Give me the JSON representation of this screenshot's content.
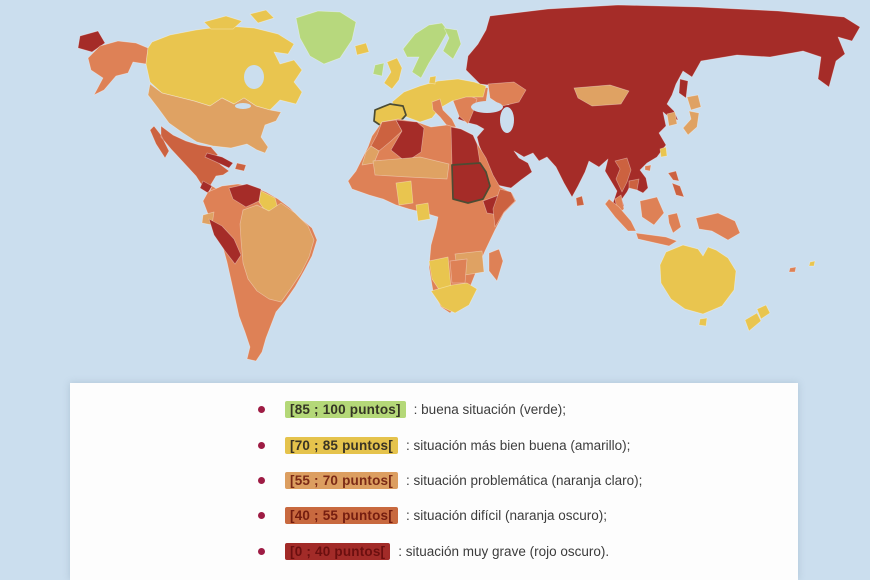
{
  "page": {
    "background": "#cbdeee"
  },
  "map": {
    "ocean": "#cbdeee",
    "palette": {
      "green": "#b7d87d",
      "yellow": "#e9c54f",
      "light_orange": "#dfa263",
      "orange": "#de8156",
      "dark_orange": "#cc6240",
      "dark_red": "#a52c28"
    },
    "regions": {
      "chukotka": "dark_red",
      "alaska": "orange",
      "canada": "yellow",
      "canada-islands": "yellow",
      "greenland": "green",
      "iceland": "yellow",
      "usa": "light_orange",
      "mexico": "dark_orange",
      "guatemala": "dark_red",
      "central-america": "orange",
      "nicaragua": "dark_red",
      "cuba": "dark_red",
      "hispaniola": "dark_orange",
      "south-america": "orange",
      "venezuela": "dark_red",
      "guyana": "yellow",
      "ecuador": "light_orange",
      "peru": "dark_red",
      "brazil": "light_orange",
      "uk": "yellow",
      "ireland": "green",
      "scandinavia": "green",
      "finland": "green",
      "denmark": "yellow",
      "western-europe": "yellow",
      "spain": "yellow",
      "italy": "orange",
      "balkans": "orange",
      "east-europe": "orange",
      "ukraine": "orange",
      "russia-asia": "dark_red",
      "sakhalin": "dark_red",
      "mongolia": "light_orange",
      "south-korea": "light_orange",
      "japan": "light_orange",
      "taiwan": "yellow",
      "hainan": "orange",
      "thailand": "dark_orange",
      "cambodia": "dark_orange",
      "malaysia": "orange",
      "sri-lanka": "dark_orange",
      "philippines": "dark_orange",
      "indonesia": "orange",
      "new-guinea": "orange",
      "australia": "yellow",
      "tasmania": "yellow",
      "new-zealand": "yellow",
      "fiji": "yellow",
      "new-caledonia": "orange",
      "africa": "orange",
      "morocco": "dark_orange",
      "western-sahara": "light_orange",
      "algeria": "dark_red",
      "egypt": "dark_red",
      "sudan": "dark_red",
      "ethiopia": "dark_red",
      "somalia": "dark_orange",
      "sahel": "light_orange",
      "west-africa-yellow": "yellow",
      "ghana": "yellow",
      "zambia": "light_orange",
      "namibia": "yellow",
      "botswana": "orange",
      "south-africa": "yellow",
      "madagascar": "orange"
    },
    "highlighted_regions": [
      "spain",
      "sudan"
    ]
  },
  "legend": {
    "background": "#fdfdfd",
    "bullet_color": "#9e1c44",
    "items": [
      {
        "range": "[85 ; 100 puntos]",
        "description": ": buena situación (verde);",
        "swatch": "#b4d878",
        "text_color": "#353525"
      },
      {
        "range": "[70 ; 85 puntos[",
        "description": ": situación más bien buena (amarillo);",
        "swatch": "#e5c34c",
        "text_color": "#3a3424"
      },
      {
        "range": "[55 ; 70 puntos[",
        "description": ": situación problemática (naranja claro);",
        "swatch": "#dc9e60",
        "text_color": "#7c2a16"
      },
      {
        "range": "[40 ; 55 puntos[",
        "description": ": situación difícil (naranja oscuro);",
        "swatch": "#c8693f",
        "text_color": "#741d10"
      },
      {
        "range": "[0 ; 40 puntos[",
        "description": ": situación muy grave (rojo oscuro).",
        "swatch": "#a22b28",
        "text_color": "#6b0f0f"
      }
    ]
  }
}
